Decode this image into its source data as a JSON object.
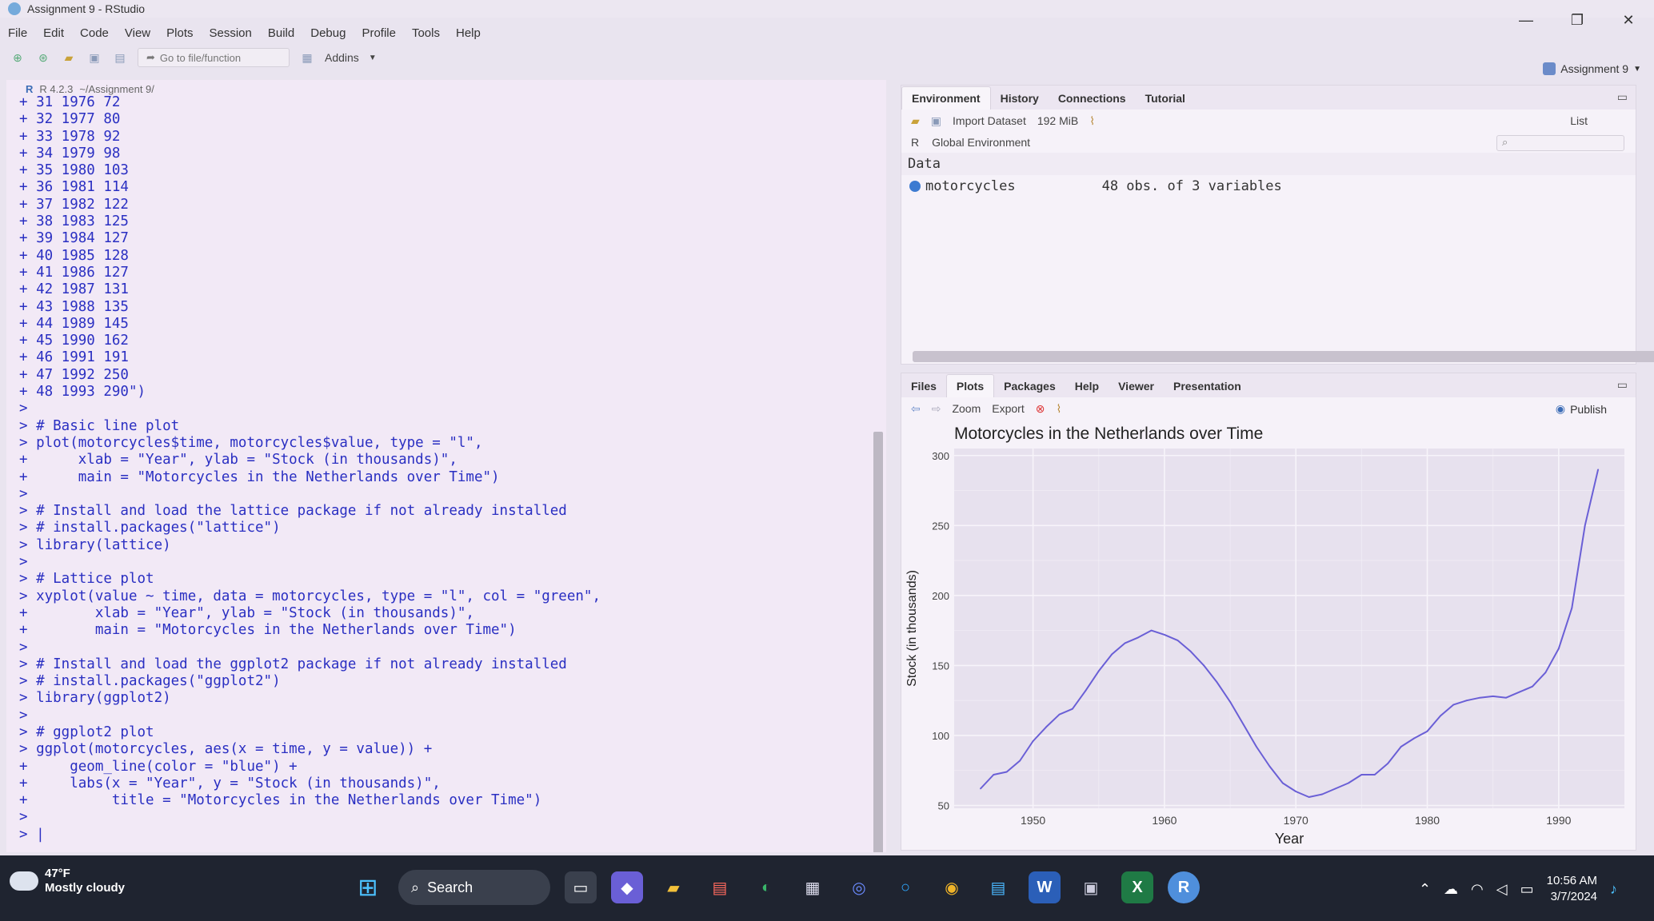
{
  "window": {
    "title": "Assignment 9 - RStudio",
    "controls": [
      "—",
      "❐",
      "✕"
    ]
  },
  "menubar": [
    "File",
    "Edit",
    "Code",
    "View",
    "Plots",
    "Session",
    "Build",
    "Debug",
    "Profile",
    "Tools",
    "Help"
  ],
  "toolbar": {
    "goto_placeholder": "Go to file/function",
    "addins_label": "Addins",
    "project_label": "Assignment 9"
  },
  "console": {
    "header_version": "R 4.2.3",
    "header_path": "~/Assignment 9/",
    "lines": [
      "+ 31 1976 72",
      "+ 32 1977 80",
      "+ 33 1978 92",
      "+ 34 1979 98",
      "+ 35 1980 103",
      "+ 36 1981 114",
      "+ 37 1982 122",
      "+ 38 1983 125",
      "+ 39 1984 127",
      "+ 40 1985 128",
      "+ 41 1986 127",
      "+ 42 1987 131",
      "+ 43 1988 135",
      "+ 44 1989 145",
      "+ 45 1990 162",
      "+ 46 1991 191",
      "+ 47 1992 250",
      "+ 48 1993 290\")",
      ">",
      "> # Basic line plot",
      "> plot(motorcycles$time, motorcycles$value, type = \"l\",",
      "+      xlab = \"Year\", ylab = \"Stock (in thousands)\",",
      "+      main = \"Motorcycles in the Netherlands over Time\")",
      ">",
      "> # Install and load the lattice package if not already installed",
      "> # install.packages(\"lattice\")",
      "> library(lattice)",
      ">",
      "> # Lattice plot",
      "> xyplot(value ~ time, data = motorcycles, type = \"l\", col = \"green\",",
      "+        xlab = \"Year\", ylab = \"Stock (in thousands)\",",
      "+        main = \"Motorcycles in the Netherlands over Time\")",
      ">",
      "> # Install and load the ggplot2 package if not already installed",
      "> # install.packages(\"ggplot2\")",
      "> library(ggplot2)",
      ">",
      "> # ggplot2 plot",
      "> ggplot(motorcycles, aes(x = time, y = value)) +",
      "+     geom_line(color = \"blue\") +",
      "+     labs(x = \"Year\", y = \"Stock (in thousands)\",",
      "+          title = \"Motorcycles in the Netherlands over Time\")",
      ">",
      "> |"
    ]
  },
  "env_pane": {
    "tabs": [
      "Environment",
      "History",
      "Connections",
      "Tutorial"
    ],
    "import_label": "Import Dataset",
    "memory_label": "192 MiB",
    "r_label": "R",
    "scope_label": "Global Environment",
    "list_label": "List",
    "section": "Data",
    "rows": [
      {
        "name": "motorcycles",
        "value": "48 obs. of 3 variables"
      }
    ]
  },
  "files_pane": {
    "tabs": [
      "Files",
      "Plots",
      "Packages",
      "Help",
      "Viewer",
      "Presentation"
    ],
    "zoom_label": "Zoom",
    "export_label": "Export",
    "publish_label": "Publish"
  },
  "taskbar": {
    "temp": "47°F",
    "weather": "Mostly cloudy",
    "search_label": "Search",
    "time": "10:56 AM",
    "date": "3/7/2024"
  },
  "colors": {
    "line": "#6a5fd6",
    "plot_bg": "#e7e1ee",
    "grid": "#f7f4fa",
    "console_text": "#2a2fc2",
    "taskbar": "#1f2430"
  },
  "chart_data": {
    "type": "line",
    "title": "Motorcycles in the Netherlands over Time",
    "xlabel": "Year",
    "ylabel": "Stock (in thousands)",
    "xlim": [
      1944,
      1995
    ],
    "ylim": [
      48,
      305
    ],
    "xticks": [
      1950,
      1960,
      1970,
      1980,
      1990
    ],
    "yticks": [
      50,
      100,
      150,
      200,
      250,
      300
    ],
    "x": [
      1946,
      1947,
      1948,
      1949,
      1950,
      1951,
      1952,
      1953,
      1954,
      1955,
      1956,
      1957,
      1958,
      1959,
      1960,
      1961,
      1962,
      1963,
      1964,
      1965,
      1966,
      1967,
      1968,
      1969,
      1970,
      1971,
      1972,
      1973,
      1974,
      1975,
      1976,
      1977,
      1978,
      1979,
      1980,
      1981,
      1982,
      1983,
      1984,
      1985,
      1986,
      1987,
      1988,
      1989,
      1990,
      1991,
      1992,
      1993
    ],
    "series": [
      {
        "values": [
          62,
          72,
          74,
          82,
          96,
          106,
          115,
          119,
          132,
          146,
          158,
          166,
          170,
          175,
          172,
          168,
          160,
          150,
          138,
          124,
          108,
          92,
          78,
          66,
          60,
          56,
          58,
          62,
          66,
          72,
          72,
          80,
          92,
          98,
          103,
          114,
          122,
          125,
          127,
          128,
          127,
          131,
          135,
          145,
          162,
          191,
          250,
          290
        ]
      }
    ],
    "grid": true,
    "legend": "none"
  }
}
